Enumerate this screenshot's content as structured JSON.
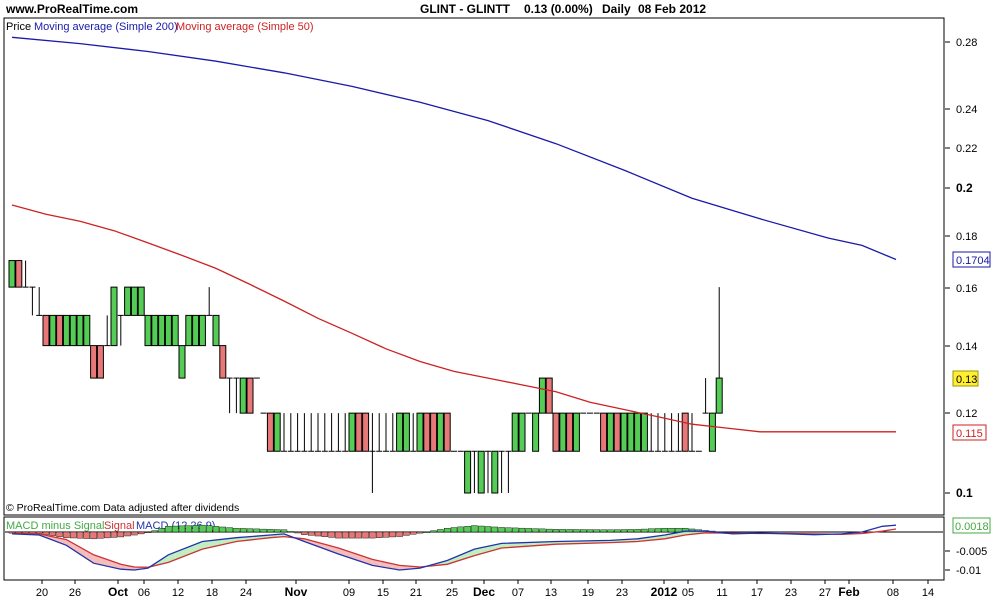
{
  "header": {
    "site": "www.ProRealTime.com",
    "instrument": "GLINT - GLINTT",
    "quote": "0.13 (0.00%)",
    "period": "Daily",
    "date": "08 Feb 2012"
  },
  "main_panel": {
    "legend_price": "Price",
    "legend_ma200": "Moving average (Simple 200)",
    "legend_ma50": "Moving average (Simple 50)",
    "footer": "© ProRealTime.com  Data adjusted after dividends",
    "y_ticks": [
      "0.28",
      "0.24",
      "0.22",
      "0.2",
      "0.18",
      "0.16",
      "0.14",
      "0.12",
      "0.1"
    ],
    "badges": {
      "ma200": "0.1704",
      "price": "0.13",
      "ma50": "0.115"
    }
  },
  "macd_panel": {
    "legend_hist": "MACD minus Signal",
    "legend_signal": "Signal",
    "legend_macd": "MACD (12,26,9)",
    "y_ticks": [
      "-0.005",
      "-0.01"
    ],
    "badge": "0.0018"
  },
  "x_ticks": [
    "20",
    "26",
    "Oct",
    "06",
    "12",
    "18",
    "24",
    "Nov",
    "09",
    "15",
    "21",
    "25",
    "Dec",
    "07",
    "13",
    "19",
    "23",
    "2012",
    "05",
    "11",
    "17",
    "23",
    "27",
    "Feb",
    "08",
    "14"
  ],
  "colors": {
    "ma200": "#1a1aa8",
    "ma50": "#cc2222",
    "up": "#55cc55",
    "down": "#e87878",
    "macd_line": "#2233aa",
    "signal_line": "#cc3333",
    "badge_price": "#ffee33"
  },
  "chart_data": {
    "type": "candlestick",
    "title": "GLINT - GLINTT",
    "y_scale": "log",
    "ylim": [
      0.097,
      0.29
    ],
    "candles": [
      {
        "o": 0.16,
        "h": 0.17,
        "l": 0.16,
        "c": 0.17
      },
      {
        "o": 0.17,
        "h": 0.17,
        "l": 0.16,
        "c": 0.16
      },
      {
        "o": 0.16,
        "h": 0.17,
        "l": 0.16,
        "c": 0.16
      },
      {
        "o": 0.16,
        "h": 0.16,
        "l": 0.15,
        "c": 0.16
      },
      {
        "o": 0.15,
        "h": 0.16,
        "l": 0.15,
        "c": 0.15
      },
      {
        "o": 0.15,
        "h": 0.15,
        "l": 0.14,
        "c": 0.14
      },
      {
        "o": 0.14,
        "h": 0.15,
        "l": 0.14,
        "c": 0.15
      },
      {
        "o": 0.15,
        "h": 0.15,
        "l": 0.14,
        "c": 0.14
      },
      {
        "o": 0.14,
        "h": 0.15,
        "l": 0.14,
        "c": 0.15
      },
      {
        "o": 0.14,
        "h": 0.15,
        "l": 0.14,
        "c": 0.15
      },
      {
        "o": 0.14,
        "h": 0.15,
        "l": 0.14,
        "c": 0.15
      },
      {
        "o": 0.14,
        "h": 0.15,
        "l": 0.14,
        "c": 0.15
      },
      {
        "o": 0.14,
        "h": 0.14,
        "l": 0.13,
        "c": 0.13
      },
      {
        "o": 0.14,
        "h": 0.14,
        "l": 0.13,
        "c": 0.13
      },
      {
        "o": 0.14,
        "h": 0.15,
        "l": 0.14,
        "c": 0.14
      },
      {
        "o": 0.14,
        "h": 0.16,
        "l": 0.14,
        "c": 0.16
      },
      {
        "o": 0.15,
        "h": 0.15,
        "l": 0.14,
        "c": 0.15
      },
      {
        "o": 0.15,
        "h": 0.16,
        "l": 0.15,
        "c": 0.16
      },
      {
        "o": 0.15,
        "h": 0.16,
        "l": 0.15,
        "c": 0.16
      },
      {
        "o": 0.15,
        "h": 0.16,
        "l": 0.15,
        "c": 0.16
      },
      {
        "o": 0.14,
        "h": 0.15,
        "l": 0.14,
        "c": 0.15
      },
      {
        "o": 0.14,
        "h": 0.15,
        "l": 0.14,
        "c": 0.15
      },
      {
        "o": 0.14,
        "h": 0.15,
        "l": 0.14,
        "c": 0.15
      },
      {
        "o": 0.14,
        "h": 0.15,
        "l": 0.14,
        "c": 0.15
      },
      {
        "o": 0.14,
        "h": 0.15,
        "l": 0.14,
        "c": 0.15
      },
      {
        "o": 0.13,
        "h": 0.14,
        "l": 0.13,
        "c": 0.14
      },
      {
        "o": 0.14,
        "h": 0.15,
        "l": 0.14,
        "c": 0.15
      },
      {
        "o": 0.14,
        "h": 0.15,
        "l": 0.14,
        "c": 0.15
      },
      {
        "o": 0.14,
        "h": 0.15,
        "l": 0.14,
        "c": 0.15
      },
      {
        "o": 0.15,
        "h": 0.16,
        "l": 0.15,
        "c": 0.15
      },
      {
        "o": 0.14,
        "h": 0.15,
        "l": 0.14,
        "c": 0.15
      },
      {
        "o": 0.14,
        "h": 0.14,
        "l": 0.13,
        "c": 0.13
      },
      {
        "o": 0.13,
        "h": 0.13,
        "l": 0.12,
        "c": 0.13
      },
      {
        "o": 0.13,
        "h": 0.13,
        "l": 0.12,
        "c": 0.13
      },
      {
        "o": 0.12,
        "h": 0.13,
        "l": 0.12,
        "c": 0.13
      },
      {
        "o": 0.13,
        "h": 0.13,
        "l": 0.12,
        "c": 0.12
      },
      {
        "o": 0.13,
        "h": 0.13,
        "l": 0.13,
        "c": 0.13
      },
      {
        "o": 0.12,
        "h": 0.12,
        "l": 0.12,
        "c": 0.12
      },
      {
        "o": 0.12,
        "h": 0.12,
        "l": 0.11,
        "c": 0.11
      },
      {
        "o": 0.11,
        "h": 0.12,
        "l": 0.11,
        "c": 0.12
      },
      {
        "o": 0.11,
        "h": 0.12,
        "l": 0.11,
        "c": 0.11
      },
      {
        "o": 0.11,
        "h": 0.12,
        "l": 0.11,
        "c": 0.11
      },
      {
        "o": 0.11,
        "h": 0.12,
        "l": 0.11,
        "c": 0.11
      },
      {
        "o": 0.11,
        "h": 0.12,
        "l": 0.11,
        "c": 0.11
      },
      {
        "o": 0.11,
        "h": 0.12,
        "l": 0.11,
        "c": 0.11
      },
      {
        "o": 0.11,
        "h": 0.12,
        "l": 0.11,
        "c": 0.11
      },
      {
        "o": 0.11,
        "h": 0.12,
        "l": 0.11,
        "c": 0.11
      },
      {
        "o": 0.11,
        "h": 0.12,
        "l": 0.11,
        "c": 0.11
      },
      {
        "o": 0.11,
        "h": 0.12,
        "l": 0.11,
        "c": 0.11
      },
      {
        "o": 0.11,
        "h": 0.12,
        "l": 0.11,
        "c": 0.11
      },
      {
        "o": 0.11,
        "h": 0.12,
        "l": 0.11,
        "c": 0.12
      },
      {
        "o": 0.12,
        "h": 0.12,
        "l": 0.11,
        "c": 0.11
      },
      {
        "o": 0.12,
        "h": 0.12,
        "l": 0.11,
        "c": 0.11
      },
      {
        "o": 0.11,
        "h": 0.12,
        "l": 0.1,
        "c": 0.11
      },
      {
        "o": 0.11,
        "h": 0.12,
        "l": 0.11,
        "c": 0.11
      },
      {
        "o": 0.11,
        "h": 0.12,
        "l": 0.11,
        "c": 0.11
      },
      {
        "o": 0.11,
        "h": 0.12,
        "l": 0.11,
        "c": 0.11
      },
      {
        "o": 0.11,
        "h": 0.12,
        "l": 0.11,
        "c": 0.12
      },
      {
        "o": 0.11,
        "h": 0.12,
        "l": 0.11,
        "c": 0.12
      },
      {
        "o": 0.11,
        "h": 0.12,
        "l": 0.11,
        "c": 0.11
      },
      {
        "o": 0.11,
        "h": 0.12,
        "l": 0.11,
        "c": 0.12
      },
      {
        "o": 0.12,
        "h": 0.12,
        "l": 0.11,
        "c": 0.11
      },
      {
        "o": 0.12,
        "h": 0.12,
        "l": 0.11,
        "c": 0.11
      },
      {
        "o": 0.11,
        "h": 0.12,
        "l": 0.11,
        "c": 0.12
      },
      {
        "o": 0.12,
        "h": 0.12,
        "l": 0.11,
        "c": 0.11
      },
      {
        "o": 0.11,
        "h": 0.11,
        "l": 0.11,
        "c": 0.11
      },
      {
        "o": 0.11,
        "h": 0.11,
        "l": 0.11,
        "c": 0.11
      },
      {
        "o": 0.1,
        "h": 0.11,
        "l": 0.1,
        "c": 0.11
      },
      {
        "o": 0.11,
        "h": 0.11,
        "l": 0.1,
        "c": 0.11
      },
      {
        "o": 0.1,
        "h": 0.11,
        "l": 0.1,
        "c": 0.11
      },
      {
        "o": 0.11,
        "h": 0.11,
        "l": 0.1,
        "c": 0.11
      },
      {
        "o": 0.1,
        "h": 0.11,
        "l": 0.1,
        "c": 0.11
      },
      {
        "o": 0.11,
        "h": 0.11,
        "l": 0.1,
        "c": 0.11
      },
      {
        "o": 0.11,
        "h": 0.11,
        "l": 0.1,
        "c": 0.11
      },
      {
        "o": 0.11,
        "h": 0.12,
        "l": 0.11,
        "c": 0.12
      },
      {
        "o": 0.11,
        "h": 0.12,
        "l": 0.11,
        "c": 0.12
      },
      {
        "o": 0.12,
        "h": 0.12,
        "l": 0.12,
        "c": 0.12
      },
      {
        "o": 0.11,
        "h": 0.12,
        "l": 0.11,
        "c": 0.12
      },
      {
        "o": 0.12,
        "h": 0.13,
        "l": 0.12,
        "c": 0.13
      },
      {
        "o": 0.13,
        "h": 0.13,
        "l": 0.12,
        "c": 0.12
      },
      {
        "o": 0.12,
        "h": 0.12,
        "l": 0.11,
        "c": 0.11
      },
      {
        "o": 0.11,
        "h": 0.12,
        "l": 0.11,
        "c": 0.12
      },
      {
        "o": 0.12,
        "h": 0.12,
        "l": 0.11,
        "c": 0.11
      },
      {
        "o": 0.11,
        "h": 0.12,
        "l": 0.11,
        "c": 0.12
      },
      {
        "o": 0.12,
        "h": 0.12,
        "l": 0.12,
        "c": 0.12
      },
      {
        "o": 0.12,
        "h": 0.12,
        "l": 0.12,
        "c": 0.12
      },
      {
        "o": 0.12,
        "h": 0.12,
        "l": 0.12,
        "c": 0.12
      },
      {
        "o": 0.12,
        "h": 0.12,
        "l": 0.11,
        "c": 0.11
      },
      {
        "o": 0.11,
        "h": 0.12,
        "l": 0.11,
        "c": 0.12
      },
      {
        "o": 0.12,
        "h": 0.12,
        "l": 0.11,
        "c": 0.11
      },
      {
        "o": 0.11,
        "h": 0.12,
        "l": 0.11,
        "c": 0.12
      },
      {
        "o": 0.11,
        "h": 0.12,
        "l": 0.11,
        "c": 0.12
      },
      {
        "o": 0.11,
        "h": 0.12,
        "l": 0.11,
        "c": 0.12
      },
      {
        "o": 0.11,
        "h": 0.12,
        "l": 0.11,
        "c": 0.12
      },
      {
        "o": 0.11,
        "h": 0.12,
        "l": 0.11,
        "c": 0.11
      },
      {
        "o": 0.11,
        "h": 0.12,
        "l": 0.11,
        "c": 0.11
      },
      {
        "o": 0.11,
        "h": 0.12,
        "l": 0.11,
        "c": 0.11
      },
      {
        "o": 0.11,
        "h": 0.12,
        "l": 0.11,
        "c": 0.11
      },
      {
        "o": 0.11,
        "h": 0.12,
        "l": 0.11,
        "c": 0.11
      },
      {
        "o": 0.12,
        "h": 0.12,
        "l": 0.11,
        "c": 0.11
      },
      {
        "o": 0.11,
        "h": 0.12,
        "l": 0.11,
        "c": 0.11
      },
      {
        "o": 0.11,
        "h": 0.11,
        "l": 0.11,
        "c": 0.11
      },
      {
        "o": 0.12,
        "h": 0.13,
        "l": 0.12,
        "c": 0.12
      },
      {
        "o": 0.11,
        "h": 0.12,
        "l": 0.11,
        "c": 0.12
      },
      {
        "o": 0.12,
        "h": 0.16,
        "l": 0.12,
        "c": 0.13
      }
    ],
    "ma200": {
      "name": "Moving average (Simple 200)",
      "points": [
        [
          0,
          0.283
        ],
        [
          10,
          0.279
        ],
        [
          20,
          0.274
        ],
        [
          30,
          0.268
        ],
        [
          40,
          0.261
        ],
        [
          50,
          0.253
        ],
        [
          60,
          0.244
        ],
        [
          70,
          0.234
        ],
        [
          80,
          0.222
        ],
        [
          90,
          0.209
        ],
        [
          100,
          0.196
        ],
        [
          110,
          0.187
        ],
        [
          120,
          0.179
        ],
        [
          125,
          0.176
        ],
        [
          130,
          0.1704
        ]
      ]
    },
    "ma50": {
      "name": "Moving average (Simple 50)",
      "points": [
        [
          0,
          0.193
        ],
        [
          5,
          0.189
        ],
        [
          10,
          0.186
        ],
        [
          15,
          0.182
        ],
        [
          20,
          0.177
        ],
        [
          25,
          0.172
        ],
        [
          30,
          0.167
        ],
        [
          35,
          0.161
        ],
        [
          40,
          0.155
        ],
        [
          45,
          0.149
        ],
        [
          50,
          0.144
        ],
        [
          55,
          0.139
        ],
        [
          60,
          0.135
        ],
        [
          65,
          0.132
        ],
        [
          70,
          0.13
        ],
        [
          75,
          0.128
        ],
        [
          80,
          0.126
        ],
        [
          85,
          0.123
        ],
        [
          90,
          0.121
        ],
        [
          95,
          0.119
        ],
        [
          100,
          0.117
        ],
        [
          105,
          0.116
        ],
        [
          110,
          0.115
        ],
        [
          115,
          0.115
        ],
        [
          120,
          0.115
        ],
        [
          125,
          0.115
        ],
        [
          130,
          0.115
        ]
      ]
    },
    "macd": {
      "name": "MACD (12,26,9)",
      "ylim": [
        -0.0115,
        0.0025
      ],
      "macd_line": [
        [
          0,
          -0.0005
        ],
        [
          4,
          -0.0008
        ],
        [
          8,
          -0.0035
        ],
        [
          12,
          -0.0082
        ],
        [
          16,
          -0.0098
        ],
        [
          18,
          -0.01
        ],
        [
          20,
          -0.0095
        ],
        [
          23,
          -0.006
        ],
        [
          28,
          -0.0025
        ],
        [
          33,
          -0.0015
        ],
        [
          38,
          -0.0008
        ],
        [
          40,
          -0.0005
        ],
        [
          43,
          -0.0025
        ],
        [
          48,
          -0.0058
        ],
        [
          53,
          -0.0088
        ],
        [
          57,
          -0.01
        ],
        [
          60,
          -0.0095
        ],
        [
          64,
          -0.0075
        ],
        [
          68,
          -0.0045
        ],
        [
          72,
          -0.003
        ],
        [
          80,
          -0.0025
        ],
        [
          88,
          -0.0022
        ],
        [
          92,
          -0.0018
        ],
        [
          96,
          -0.0008
        ],
        [
          99,
          0.0002
        ],
        [
          102,
          0.0002
        ],
        [
          106,
          -0.0005
        ],
        [
          110,
          -0.0003
        ],
        [
          114,
          -0.0005
        ],
        [
          118,
          -0.0007
        ],
        [
          122,
          -0.0005
        ],
        [
          125,
          0.0
        ],
        [
          128,
          0.0015
        ],
        [
          130,
          0.0018
        ]
      ],
      "signal_line": [
        [
          0,
          -0.0003
        ],
        [
          4,
          -0.0005
        ],
        [
          8,
          -0.002
        ],
        [
          12,
          -0.006
        ],
        [
          16,
          -0.0085
        ],
        [
          18,
          -0.0092
        ],
        [
          20,
          -0.0093
        ],
        [
          23,
          -0.008
        ],
        [
          28,
          -0.0045
        ],
        [
          33,
          -0.0025
        ],
        [
          38,
          -0.0015
        ],
        [
          40,
          -0.0012
        ],
        [
          43,
          -0.0018
        ],
        [
          48,
          -0.0042
        ],
        [
          53,
          -0.0072
        ],
        [
          57,
          -0.0088
        ],
        [
          60,
          -0.0092
        ],
        [
          64,
          -0.0085
        ],
        [
          68,
          -0.0062
        ],
        [
          72,
          -0.0042
        ],
        [
          80,
          -0.0032
        ],
        [
          88,
          -0.0028
        ],
        [
          92,
          -0.0025
        ],
        [
          96,
          -0.0018
        ],
        [
          99,
          -0.0008
        ],
        [
          102,
          -0.0002
        ],
        [
          106,
          -0.0003
        ],
        [
          110,
          -0.0004
        ],
        [
          114,
          -0.0004
        ],
        [
          118,
          -0.0005
        ],
        [
          122,
          -0.0006
        ],
        [
          125,
          -0.0004
        ],
        [
          128,
          0.0002
        ],
        [
          130,
          0.0008
        ]
      ],
      "histogram": [
        [
          0,
          -0.0003
        ],
        [
          4,
          -0.0004
        ],
        [
          8,
          -0.0015
        ],
        [
          12,
          -0.0018
        ],
        [
          16,
          -0.0013
        ],
        [
          18,
          -0.0008
        ],
        [
          20,
          -0.0002
        ],
        [
          23,
          0.0015
        ],
        [
          28,
          0.0018
        ],
        [
          33,
          0.001
        ],
        [
          38,
          0.0007
        ],
        [
          40,
          0.0006
        ],
        [
          43,
          -0.0007
        ],
        [
          48,
          -0.0016
        ],
        [
          53,
          -0.0016
        ],
        [
          57,
          -0.0012
        ],
        [
          60,
          -0.0003
        ],
        [
          64,
          0.001
        ],
        [
          68,
          0.0017
        ],
        [
          72,
          0.0012
        ],
        [
          80,
          0.0007
        ],
        [
          88,
          0.0006
        ],
        [
          92,
          0.0007
        ],
        [
          96,
          0.001
        ],
        [
          99,
          0.001
        ],
        [
          102,
          0.0004
        ],
        [
          106,
          -0.0002
        ],
        [
          110,
          0.0001
        ],
        [
          114,
          -0.0001
        ],
        [
          118,
          -0.0002
        ],
        [
          122,
          0.0001
        ],
        [
          125,
          0.0004
        ],
        [
          128,
          0.0013
        ],
        [
          130,
          0.0018
        ]
      ]
    }
  }
}
